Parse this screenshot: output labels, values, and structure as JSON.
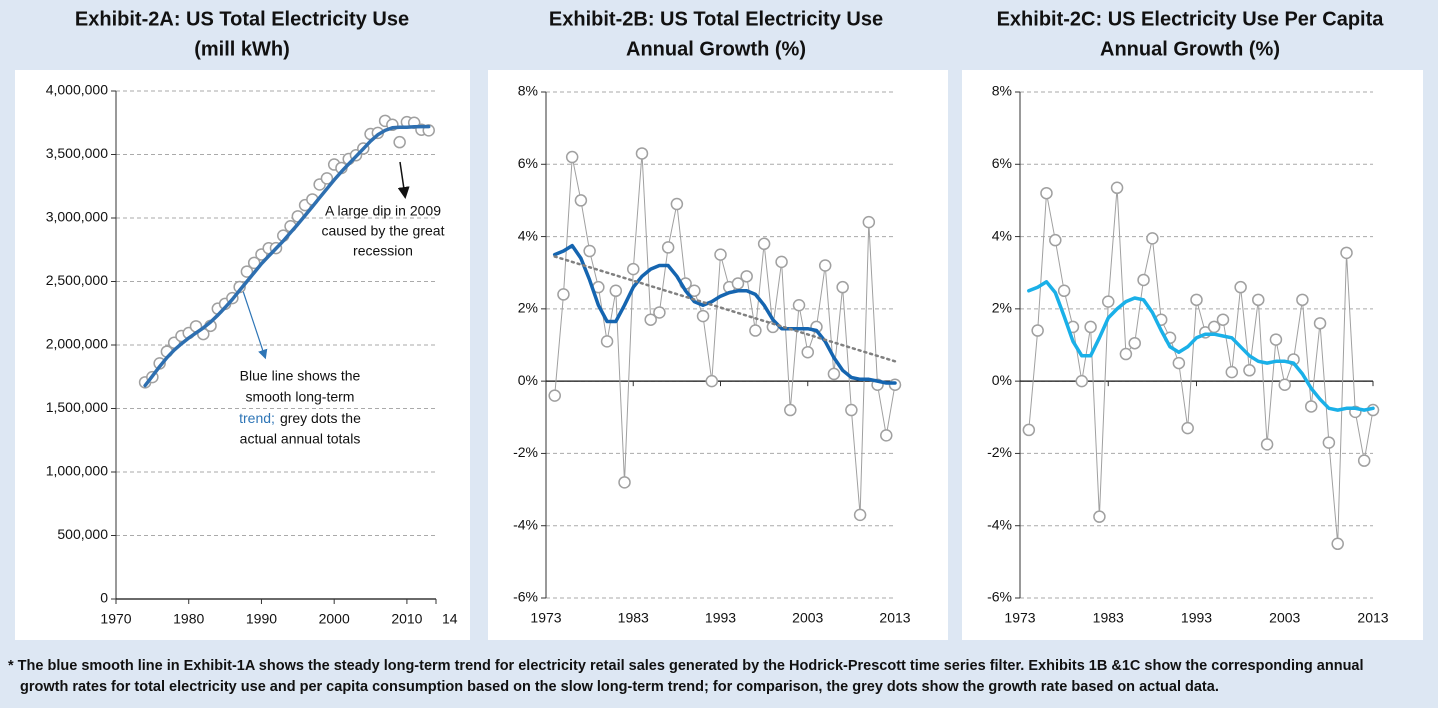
{
  "chart_data": [
    {
      "type": "line",
      "title": [
        "Exhibit-2A: US Total Electricity Use",
        "(mill kWh)"
      ],
      "x": [
        1974,
        1975,
        1976,
        1977,
        1978,
        1979,
        1980,
        1981,
        1982,
        1983,
        1984,
        1985,
        1986,
        1987,
        1988,
        1989,
        1990,
        1991,
        1992,
        1993,
        1994,
        1995,
        1996,
        1997,
        1998,
        1999,
        2000,
        2001,
        2002,
        2003,
        2004,
        2005,
        2006,
        2007,
        2008,
        2009,
        2010,
        2011,
        2012,
        2013
      ],
      "series": [
        {
          "color": "#a0a0a0",
          "markers": true,
          "line_width": 0,
          "values": [
            1706000,
            1747000,
            1855000,
            1948000,
            2018000,
            2071000,
            2094000,
            2147000,
            2086000,
            2151000,
            2286000,
            2324000,
            2369000,
            2457000,
            2578000,
            2647000,
            2713000,
            2762000,
            2763000,
            2861000,
            2935000,
            3013000,
            3101000,
            3146000,
            3264000,
            3312000,
            3421000,
            3394000,
            3465000,
            3494000,
            3547000,
            3661000,
            3670000,
            3765000,
            3734000,
            3597000,
            3755000,
            3750000,
            3695000,
            3690000
          ]
        },
        {
          "color": "#2e6fb0",
          "markers": false,
          "line_width": 3.5,
          "values": [
            1680000,
            1755000,
            1830000,
            1900000,
            1960000,
            2010000,
            2055000,
            2095000,
            2135000,
            2180000,
            2235000,
            2295000,
            2360000,
            2430000,
            2500000,
            2570000,
            2640000,
            2700000,
            2760000,
            2820000,
            2885000,
            2950000,
            3020000,
            3090000,
            3160000,
            3230000,
            3300000,
            3365000,
            3425000,
            3485000,
            3545000,
            3605000,
            3655000,
            3690000,
            3710000,
            3715000,
            3715000,
            3718000,
            3720000,
            3720000
          ]
        }
      ],
      "xlim": [
        1970,
        2014
      ],
      "xticks": [
        1970,
        1980,
        1990,
        2000,
        2010,
        {
          "value": 2014,
          "label": "14"
        }
      ],
      "ylim": [
        0,
        4000000
      ],
      "yticks": [
        0,
        {
          "value": 500000,
          "label": "500,000"
        },
        {
          "value": 1000000,
          "label": "1,000,000"
        },
        {
          "value": 1500000,
          "label": "1,500,000"
        },
        {
          "value": 2000000,
          "label": "2,000,000"
        },
        {
          "value": 2500000,
          "label": "2,500,000"
        },
        {
          "value": 3000000,
          "label": "3,000,000"
        },
        {
          "value": 3500000,
          "label": "3,500,000"
        },
        {
          "value": 4000000,
          "label": "4,000,000"
        }
      ],
      "grid": true,
      "annotations": [
        {
          "lines": [
            "A large dip in 2009",
            "caused by the great",
            "recession"
          ],
          "color": "#111111"
        },
        {
          "lines": [
            "Blue line shows the",
            "smooth long-term",
            "trend;"
          ],
          "color": "#2e75b6"
        },
        {
          "lines": [
            "grey dots the",
            "actual annual totals"
          ],
          "color": "#111111"
        }
      ]
    },
    {
      "type": "line",
      "title": [
        "Exhibit-2B: US Total Electricity Use",
        "Annual Growth (%)"
      ],
      "x": [
        1974,
        1975,
        1976,
        1977,
        1978,
        1979,
        1980,
        1981,
        1982,
        1983,
        1984,
        1985,
        1986,
        1987,
        1988,
        1989,
        1990,
        1991,
        1992,
        1993,
        1994,
        1995,
        1996,
        1997,
        1998,
        1999,
        2000,
        2001,
        2002,
        2003,
        2004,
        2005,
        2006,
        2007,
        2008,
        2009,
        2010,
        2011,
        2012,
        2013
      ],
      "series": [
        {
          "color": "#a0a0a0",
          "markers": true,
          "line_width": 1,
          "values": [
            -0.4,
            2.4,
            6.2,
            5.0,
            3.6,
            2.6,
            1.1,
            2.5,
            -2.8,
            3.1,
            6.3,
            1.7,
            1.9,
            3.7,
            4.9,
            2.7,
            2.5,
            1.8,
            0.0,
            3.5,
            2.6,
            2.7,
            2.9,
            1.4,
            3.8,
            1.5,
            3.3,
            -0.8,
            2.1,
            0.8,
            1.5,
            3.2,
            0.2,
            2.6,
            -0.8,
            -3.7,
            4.4,
            -0.1,
            -1.5,
            -0.1
          ]
        },
        {
          "color": "#1565b0",
          "markers": false,
          "line_width": 3.5,
          "values": [
            3.5,
            3.6,
            3.75,
            3.4,
            2.8,
            2.1,
            1.65,
            1.65,
            2.1,
            2.6,
            2.9,
            3.1,
            3.2,
            3.2,
            2.9,
            2.5,
            2.2,
            2.1,
            2.2,
            2.35,
            2.45,
            2.5,
            2.5,
            2.4,
            2.1,
            1.7,
            1.45,
            1.45,
            1.45,
            1.45,
            1.4,
            1.1,
            0.65,
            0.3,
            0.1,
            0.05,
            0.05,
            0.0,
            -0.05,
            -0.05
          ]
        },
        {
          "color": "#808080",
          "markers": false,
          "line_width": 2.5,
          "dash": true,
          "x": [
            1974,
            2013
          ],
          "values": [
            3.45,
            0.55
          ]
        }
      ],
      "xlim": [
        1973,
        2013
      ],
      "xticks": [
        1973,
        1983,
        1993,
        2003,
        2013
      ],
      "ylim": [
        -6,
        8
      ],
      "yticks": [
        {
          "value": -6,
          "label": "-6%"
        },
        {
          "value": -4,
          "label": "-4%"
        },
        {
          "value": -2,
          "label": "-2%"
        },
        {
          "value": 0,
          "label": "0%"
        },
        {
          "value": 2,
          "label": "2%"
        },
        {
          "value": 4,
          "label": "4%"
        },
        {
          "value": 6,
          "label": "6%"
        },
        {
          "value": 8,
          "label": "8%"
        }
      ],
      "grid": true
    },
    {
      "type": "line",
      "title": [
        "Exhibit-2C: US Electricity Use Per Capita",
        "Annual Growth (%)"
      ],
      "x": [
        1974,
        1975,
        1976,
        1977,
        1978,
        1979,
        1980,
        1981,
        1982,
        1983,
        1984,
        1985,
        1986,
        1987,
        1988,
        1989,
        1990,
        1991,
        1992,
        1993,
        1994,
        1995,
        1996,
        1997,
        1998,
        1999,
        2000,
        2001,
        2002,
        2003,
        2004,
        2005,
        2006,
        2007,
        2008,
        2009,
        2010,
        2011,
        2012,
        2013
      ],
      "series": [
        {
          "color": "#a0a0a0",
          "markers": true,
          "line_width": 1,
          "values": [
            -1.35,
            1.4,
            5.2,
            3.9,
            2.5,
            1.5,
            0.0,
            1.5,
            -3.75,
            2.2,
            5.35,
            0.75,
            1.05,
            2.8,
            3.95,
            1.7,
            1.2,
            0.5,
            -1.3,
            2.25,
            1.35,
            1.5,
            1.7,
            0.25,
            2.6,
            0.3,
            2.25,
            -1.75,
            1.15,
            -0.1,
            0.6,
            2.25,
            -0.7,
            1.6,
            -1.7,
            -4.5,
            3.55,
            -0.85,
            -2.2,
            -0.8
          ]
        },
        {
          "color": "#1ab0e8",
          "markers": false,
          "line_width": 3.5,
          "values": [
            2.5,
            2.6,
            2.75,
            2.45,
            1.8,
            1.1,
            0.7,
            0.7,
            1.2,
            1.75,
            2.0,
            2.2,
            2.3,
            2.25,
            1.9,
            1.4,
            0.95,
            0.8,
            0.95,
            1.2,
            1.3,
            1.3,
            1.25,
            1.2,
            0.95,
            0.7,
            0.55,
            0.5,
            0.55,
            0.55,
            0.5,
            0.2,
            -0.2,
            -0.5,
            -0.75,
            -0.8,
            -0.75,
            -0.75,
            -0.8,
            -0.75
          ]
        }
      ],
      "xlim": [
        1973,
        2013
      ],
      "xticks": [
        1973,
        1983,
        1993,
        2003,
        2013
      ],
      "ylim": [
        -6,
        8
      ],
      "yticks": [
        {
          "value": -6,
          "label": "-6%"
        },
        {
          "value": -4,
          "label": "-4%"
        },
        {
          "value": -2,
          "label": "-2%"
        },
        {
          "value": 0,
          "label": "0%"
        },
        {
          "value": 2,
          "label": "2%"
        },
        {
          "value": 4,
          "label": "4%"
        },
        {
          "value": 6,
          "label": "6%"
        },
        {
          "value": 8,
          "label": "8%"
        }
      ],
      "grid": true
    }
  ],
  "footnote": [
    "* The blue smooth line in Exhibit-1A shows the steady long-term trend for electricity retail sales generated by the Hodrick-Prescott time series filter. Exhibits 1B &1C show the corresponding annual",
    "growth rates for total electricity use and per capita consumption based on the slow long-term trend; for comparison, the grey dots show the growth rate based on actual data."
  ]
}
